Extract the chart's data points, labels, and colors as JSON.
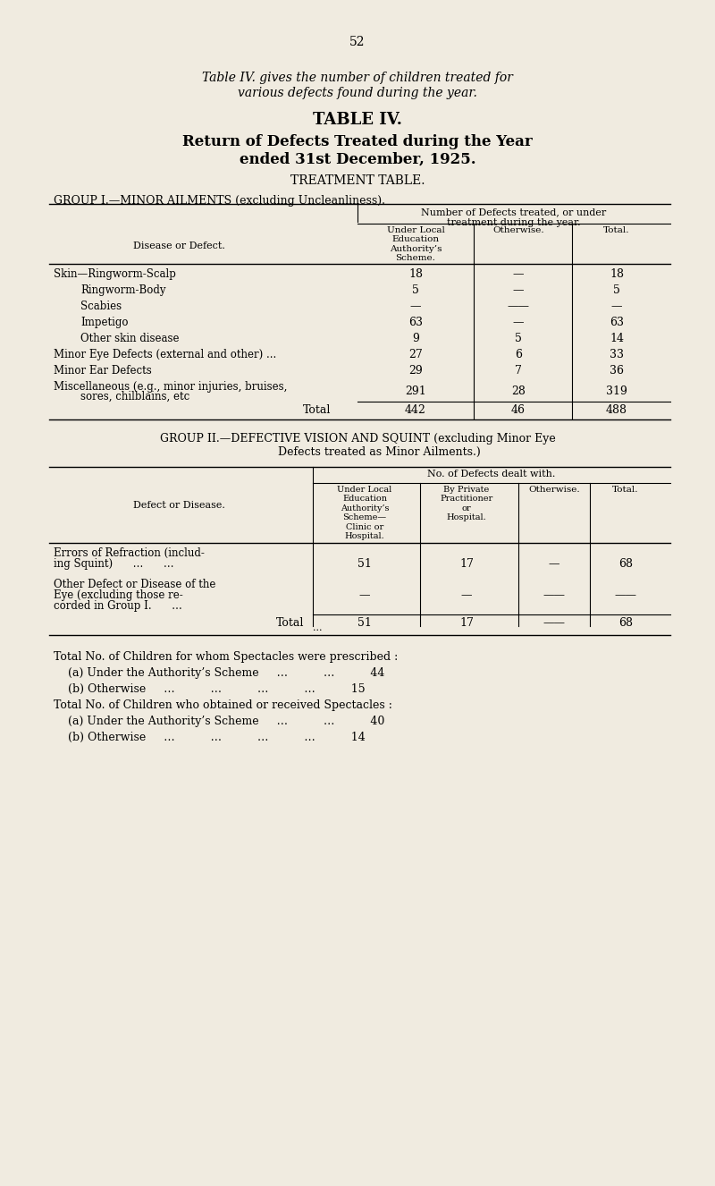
{
  "bg_color": "#f0ebe0",
  "page_number": "52",
  "intro_text_line1": "Table IV. gives the number of children treated for",
  "intro_text_line2": "various defects found during the year.",
  "title1": "TABLE IV.",
  "title2": "Return of Defects Treated during the Year",
  "title3": "ended 31st December, 1925.",
  "title4": "TREATMENT TABLE.",
  "group1_header": "GROUP I.—MINOR AILMENTS (excluding Uncleanliness).",
  "group1_col_header_main": "Number of Defects treated, or under\ntreatment during the year.",
  "group1_col1": "Under Local\nEducation\nAuthority’s\nScheme.",
  "group1_col2": "Otherwise.",
  "group1_col3": "Total.",
  "group1_label": "Disease or Defect.",
  "group1_rows": [
    {
      "label": "Skin—Ringworm-Scalp",
      "indent": 0,
      "col1": "18",
      "col2": "—",
      "col3": "18"
    },
    {
      "label": "Ringworm-Body",
      "indent": 1,
      "col1": "5",
      "col2": "—",
      "col3": "5"
    },
    {
      "label": "Scabies",
      "indent": 1,
      "col1": "—",
      "col2": "——",
      "col3": "—"
    },
    {
      "label": "Impetigo",
      "indent": 1,
      "col1": "63",
      "col2": "—",
      "col3": "63"
    },
    {
      "label": "Other skin disease",
      "indent": 1,
      "col1": "9",
      "col2": "5",
      "col3": "14"
    },
    {
      "label": "Minor Eye Defects (external and other) ...",
      "indent": 0,
      "col1": "27",
      "col2": "6",
      "col3": "33"
    },
    {
      "label": "Minor Ear Defects",
      "indent": 0,
      "col1": "29",
      "col2": "7",
      "col3": "36"
    },
    {
      "label": "Miscellaneous (e.g., minor injuries, bruises,\n        sores, chilblains, etc",
      "indent": 0,
      "col1": "291",
      "col2": "28",
      "col3": "319"
    }
  ],
  "group1_total": {
    "col1": "442",
    "col2": "46",
    "col3": "488"
  },
  "group2_header": "GROUP II.—DEFECTIVE VISION AND SQUINT (excluding Minor Eye\n            Defects treated as Minor Ailments.)",
  "group2_col_header_main": "No. of Defects dealt with.",
  "group2_col1": "Under Local\nEducation\nAuthority’s\nScheme—\nClinic or\nHospital.",
  "group2_col2": "By Private\nPractitioner\nor\nHospital.",
  "group2_col3": "Otherwise.",
  "group2_col4": "Total.",
  "group2_label": "Defect or Disease.",
  "group2_rows": [
    {
      "label": "Errors of Refraction (includ-\n    ing Squint)      …      …",
      "col1": "51",
      "col2": "17",
      "col3": "—",
      "col4": "68"
    },
    {
      "label": "Other Defect or Disease of the\n    Eye (excluding those re-\n    corded in Group I.      …",
      "col1": "—",
      "col2": "—",
      "col3": "——",
      "col4": "——"
    }
  ],
  "group2_total": {
    "col1": "51",
    "col2": "17",
    "col3": "——",
    "col4": "68"
  },
  "footnotes": [
    "Total No. of Children for whom Spectacles were prescribed :",
    "    (a) Under the Authority’s Scheme     …          …          44",
    "    (b) Otherwise     …          …          …          …          15",
    "Total No. of Children who obtained or received Spectacles :",
    "    (a) Under the Authority’s Scheme     …          …          40",
    "    (b) Otherwise     …          …          …          …          14"
  ]
}
